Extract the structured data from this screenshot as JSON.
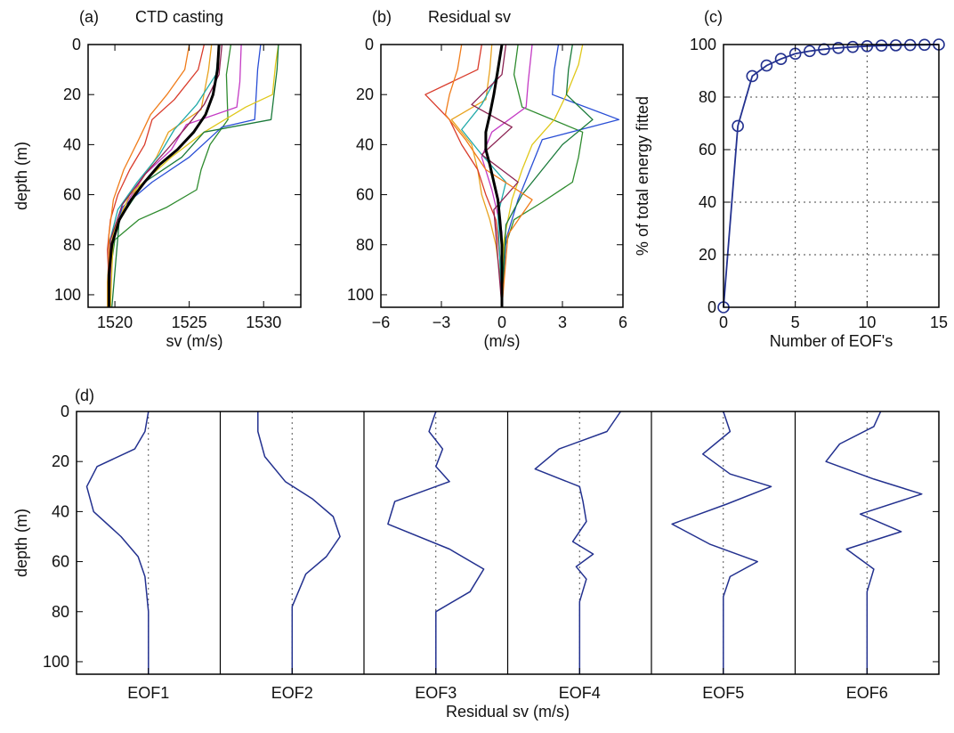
{
  "chart_data": [
    {
      "id": "a",
      "type": "line",
      "panel_label": "(a)",
      "title": "CTD casting",
      "xlabel": "sv (m/s)",
      "ylabel": "depth (m)",
      "xlim": [
        1518.2,
        1532.5
      ],
      "ylim": [
        0,
        105
      ],
      "y_reversed": true,
      "xticks": [
        1520,
        1525,
        1530
      ],
      "yticks": [
        0,
        20,
        40,
        60,
        80,
        100
      ],
      "series": [
        {
          "color": "#e8a21f",
          "x": [
            1526.5,
            1526.3,
            1525.8,
            1523.6,
            1522.8,
            1521.7,
            1520.8,
            1519.9,
            1519.6,
            1519.5,
            1519.5
          ],
          "y": [
            0,
            10,
            26,
            35,
            45,
            55,
            65,
            75,
            85,
            95,
            105
          ]
        },
        {
          "color": "#d93b2b",
          "x": [
            1526.0,
            1525.6,
            1524.0,
            1522.5,
            1522.0,
            1521.0,
            1520.2,
            1519.7,
            1519.5,
            1519.6,
            1519.6
          ],
          "y": [
            0,
            10,
            22,
            30,
            40,
            50,
            60,
            70,
            82,
            95,
            105
          ]
        },
        {
          "color": "#2e8b2e",
          "x": [
            1527.8,
            1527.5,
            1527.6,
            1526.4,
            1525.8,
            1525.5,
            1523.5,
            1521.6,
            1520.0,
            1519.7,
            1519.7
          ],
          "y": [
            0,
            12,
            30,
            40,
            50,
            58,
            65,
            70,
            78,
            90,
            105
          ]
        },
        {
          "color": "#2a4fd6",
          "x": [
            1529.8,
            1529.6,
            1529.5,
            1529.4,
            1527.2,
            1525.0,
            1522.5,
            1520.5,
            1519.8,
            1519.7
          ],
          "y": [
            0,
            10,
            20,
            30,
            33,
            45,
            55,
            65,
            80,
            105
          ]
        },
        {
          "color": "#c43bc4",
          "x": [
            1528.5,
            1528.4,
            1528.2,
            1524.8,
            1523.8,
            1522.0,
            1520.6,
            1519.8,
            1519.7
          ],
          "y": [
            0,
            15,
            25,
            32,
            42,
            52,
            65,
            80,
            105
          ]
        },
        {
          "color": "#1fa9a9",
          "x": [
            1527.0,
            1526.8,
            1525.5,
            1524.0,
            1523.0,
            1521.5,
            1520.2,
            1519.6,
            1519.6
          ],
          "y": [
            0,
            12,
            24,
            34,
            44,
            55,
            66,
            80,
            105
          ]
        },
        {
          "color": "#e0c81a",
          "x": [
            1531.0,
            1530.8,
            1530.6,
            1528.8,
            1526.0,
            1523.8,
            1521.0,
            1519.9,
            1519.7
          ],
          "y": [
            0,
            8,
            20,
            25,
            35,
            45,
            60,
            75,
            105
          ]
        },
        {
          "color": "#8b2252",
          "x": [
            1527.2,
            1527.0,
            1526.0,
            1524.8,
            1523.5,
            1522.0,
            1520.5,
            1519.7,
            1519.6
          ],
          "y": [
            0,
            12,
            24,
            33,
            42,
            52,
            64,
            78,
            105
          ]
        },
        {
          "color": "#1a7a3a",
          "x": [
            1531.0,
            1530.9,
            1530.7,
            1530.5,
            1526.0,
            1524.5,
            1522.0,
            1520.3,
            1519.8
          ],
          "y": [
            0,
            10,
            20,
            30,
            35,
            45,
            55,
            70,
            105
          ]
        },
        {
          "color": "#f07c1a",
          "x": [
            1525.0,
            1524.7,
            1523.5,
            1522.4,
            1521.6,
            1520.6,
            1519.9,
            1519.6,
            1519.6
          ],
          "y": [
            0,
            10,
            20,
            28,
            38,
            50,
            62,
            76,
            105
          ]
        },
        {
          "color": "#000000",
          "width": 3,
          "x": [
            1527.0,
            1526.9,
            1526.6,
            1526.1,
            1525.3,
            1524.2,
            1523.0,
            1522.0,
            1521.1,
            1520.3,
            1519.8,
            1519.6,
            1519.6
          ],
          "y": [
            0,
            10,
            20,
            28,
            35,
            42,
            48,
            55,
            62,
            70,
            80,
            92,
            105
          ]
        }
      ]
    },
    {
      "id": "b",
      "type": "line",
      "panel_label": "(b)",
      "title": "Residual sv",
      "xlabel": "(m/s)",
      "ylabel": "",
      "xlim": [
        -6,
        6
      ],
      "ylim": [
        0,
        105
      ],
      "y_reversed": true,
      "xticks": [
        -6,
        -3,
        0,
        3,
        6
      ],
      "yticks": [
        0,
        20,
        40,
        60,
        80,
        100
      ],
      "series": [
        {
          "color": "#e8a21f",
          "x": [
            -0.5,
            -0.6,
            -0.8,
            -2.5,
            -1.5,
            -1.2,
            -1.0,
            -0.6,
            -0.3,
            -0.1,
            0.0
          ],
          "y": [
            0,
            10,
            22,
            30,
            40,
            50,
            60,
            70,
            80,
            92,
            105
          ]
        },
        {
          "color": "#d93b2b",
          "x": [
            -1.0,
            -1.2,
            -3.8,
            -2.6,
            -2.0,
            -1.2,
            -0.8,
            -0.3,
            -0.1,
            0.0
          ],
          "y": [
            0,
            10,
            20,
            30,
            40,
            50,
            60,
            70,
            85,
            105
          ]
        },
        {
          "color": "#2e8b2e",
          "x": [
            0.8,
            0.6,
            1.0,
            4.0,
            3.8,
            3.5,
            2.0,
            0.6,
            0.1,
            0.0
          ],
          "y": [
            0,
            12,
            25,
            35,
            45,
            55,
            63,
            70,
            82,
            105
          ]
        },
        {
          "color": "#2a4fd6",
          "x": [
            2.8,
            2.6,
            2.5,
            5.8,
            2.0,
            1.4,
            0.8,
            0.2,
            0.0
          ],
          "y": [
            0,
            10,
            20,
            30,
            38,
            50,
            62,
            78,
            105
          ]
        },
        {
          "color": "#c43bc4",
          "x": [
            1.5,
            1.3,
            1.2,
            -0.5,
            -1.0,
            -0.5,
            0.0,
            0.0
          ],
          "y": [
            0,
            15,
            25,
            35,
            45,
            58,
            75,
            105
          ]
        },
        {
          "color": "#1fa9a9",
          "x": [
            0.0,
            -0.2,
            -1.0,
            -2.0,
            -1.0,
            0.2,
            -0.2,
            0.0
          ],
          "y": [
            0,
            12,
            24,
            34,
            44,
            55,
            68,
            105
          ]
        },
        {
          "color": "#e0c81a",
          "x": [
            4.0,
            3.8,
            3.2,
            2.6,
            1.5,
            1.0,
            0.5,
            0.1,
            0.0
          ],
          "y": [
            0,
            8,
            20,
            30,
            40,
            50,
            62,
            78,
            105
          ]
        },
        {
          "color": "#8b2252",
          "x": [
            0.2,
            0.0,
            -1.5,
            0.5,
            -1.0,
            0.8,
            -0.4,
            0.0
          ],
          "y": [
            0,
            12,
            24,
            33,
            44,
            55,
            66,
            105
          ]
        },
        {
          "color": "#1a7a3a",
          "x": [
            3.5,
            3.3,
            3.2,
            4.5,
            3.0,
            2.0,
            1.0,
            0.2,
            0.0
          ],
          "y": [
            0,
            10,
            20,
            30,
            40,
            50,
            60,
            72,
            105
          ]
        },
        {
          "color": "#f07c1a",
          "x": [
            -2.0,
            -2.2,
            -2.6,
            -2.8,
            -1.8,
            -0.8,
            1.5,
            0.3,
            0.0
          ],
          "y": [
            0,
            10,
            20,
            28,
            38,
            50,
            62,
            76,
            105
          ]
        },
        {
          "color": "#000000",
          "width": 3,
          "x": [
            0.0,
            -0.2,
            -0.4,
            -0.6,
            -0.8,
            -0.8,
            -0.6,
            -0.4,
            -0.2,
            -0.1,
            0.0,
            0.0,
            0.0
          ],
          "y": [
            0,
            10,
            20,
            28,
            35,
            42,
            48,
            55,
            62,
            70,
            80,
            92,
            105
          ]
        }
      ]
    },
    {
      "id": "c",
      "type": "line",
      "panel_label": "(c)",
      "title": "",
      "xlabel": "Number of EOF's",
      "ylabel": "% of total energy fitted",
      "xlim": [
        0,
        15
      ],
      "ylim": [
        0,
        100
      ],
      "xticks": [
        0,
        5,
        10,
        15
      ],
      "yticks": [
        0,
        20,
        40,
        60,
        80,
        100
      ],
      "grid": true,
      "series": [
        {
          "color": "#23318f",
          "marker": "circle",
          "x": [
            0,
            1,
            2,
            3,
            4,
            5,
            6,
            7,
            8,
            9,
            10,
            11,
            12,
            13,
            14,
            15
          ],
          "y": [
            0,
            69,
            88,
            92,
            94.5,
            96.5,
            97.5,
            98.2,
            98.7,
            99.1,
            99.4,
            99.6,
            99.7,
            99.8,
            99.9,
            100
          ]
        }
      ]
    },
    {
      "id": "d",
      "type": "line",
      "panel_label": "(d)",
      "title": "",
      "xlabel": "Residual sv (m/s)",
      "ylabel": "depth (m)",
      "ylim": [
        0,
        105
      ],
      "y_reversed": true,
      "yticks": [
        0,
        20,
        40,
        60,
        80,
        100
      ],
      "subplots": [
        {
          "label": "EOF1",
          "x": [
            0,
            -0.05,
            -0.2,
            -0.75,
            -0.9,
            -0.8,
            -0.4,
            -0.15,
            -0.05,
            0,
            0
          ],
          "y": [
            0,
            8,
            15,
            22,
            30,
            40,
            50,
            58,
            66,
            80,
            105
          ]
        },
        {
          "label": "EOF2",
          "x": [
            -0.5,
            -0.5,
            -0.4,
            -0.1,
            0.3,
            0.6,
            0.7,
            0.5,
            0.2,
            0,
            0
          ],
          "y": [
            0,
            8,
            18,
            28,
            35,
            42,
            50,
            58,
            65,
            78,
            105
          ]
        },
        {
          "label": "EOF3",
          "x": [
            0,
            -0.1,
            0.1,
            0,
            0.2,
            -0.6,
            -0.7,
            0.2,
            0.7,
            0.5,
            0,
            0
          ],
          "y": [
            0,
            8,
            15,
            22,
            28,
            36,
            45,
            55,
            63,
            72,
            80,
            105
          ]
        },
        {
          "label": "EOF4",
          "x": [
            0.6,
            0.4,
            -0.3,
            -0.65,
            0,
            0.05,
            0.1,
            -0.1,
            0.2,
            -0.05,
            0.1,
            0,
            0
          ],
          "y": [
            0,
            8,
            15,
            23,
            30,
            36,
            44,
            52,
            57,
            62,
            67,
            76,
            105
          ]
        },
        {
          "label": "EOF5",
          "x": [
            0,
            0.1,
            -0.3,
            0.1,
            0.7,
            0.05,
            -0.75,
            -0.2,
            0.5,
            0.1,
            0,
            0
          ],
          "y": [
            0,
            8,
            17,
            25,
            30,
            37,
            45,
            53,
            60,
            66,
            74,
            105
          ]
        },
        {
          "label": "EOF6",
          "x": [
            0.2,
            0.1,
            -0.4,
            -0.6,
            0.1,
            0.8,
            -0.1,
            0.5,
            -0.3,
            0.1,
            0,
            0
          ],
          "y": [
            0,
            6,
            13,
            20,
            27,
            33,
            41,
            48,
            55,
            63,
            72,
            105
          ]
        }
      ]
    }
  ]
}
